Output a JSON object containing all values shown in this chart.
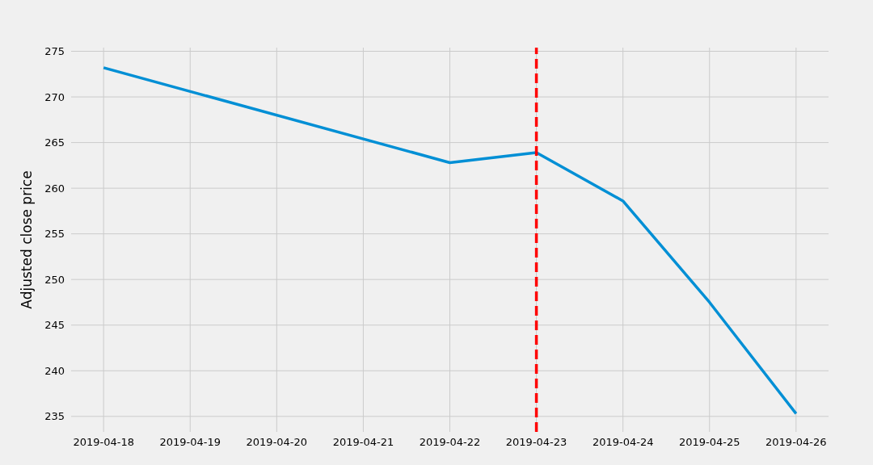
{
  "chart_data": {
    "type": "line",
    "ylabel": "Adjusted close price",
    "x": [
      "2019-04-18",
      "2019-04-22",
      "2019-04-23",
      "2019-04-24",
      "2019-04-25",
      "2019-04-26"
    ],
    "series": [
      {
        "color": "#008fd5",
        "values": [
          273.2,
          262.8,
          263.9,
          258.6,
          247.5,
          235.3
        ]
      }
    ],
    "xlim": [
      "2019-04-17T15:00",
      "2019-04-26T09:00"
    ],
    "xticks": [
      "2019-04-18",
      "2019-04-19",
      "2019-04-20",
      "2019-04-21",
      "2019-04-22",
      "2019-04-23",
      "2019-04-24",
      "2019-04-25",
      "2019-04-26"
    ],
    "ylim": [
      233.3,
      275.4
    ],
    "yticks": [
      235,
      240,
      245,
      250,
      255,
      260,
      265,
      270,
      275
    ],
    "ref_lines": [
      {
        "axis": "x",
        "value": "2019-04-23",
        "color": "#ff0000",
        "line_style": "dashed"
      }
    ],
    "grid": true,
    "marker": "none",
    "line_style": "solid",
    "legend": false
  }
}
